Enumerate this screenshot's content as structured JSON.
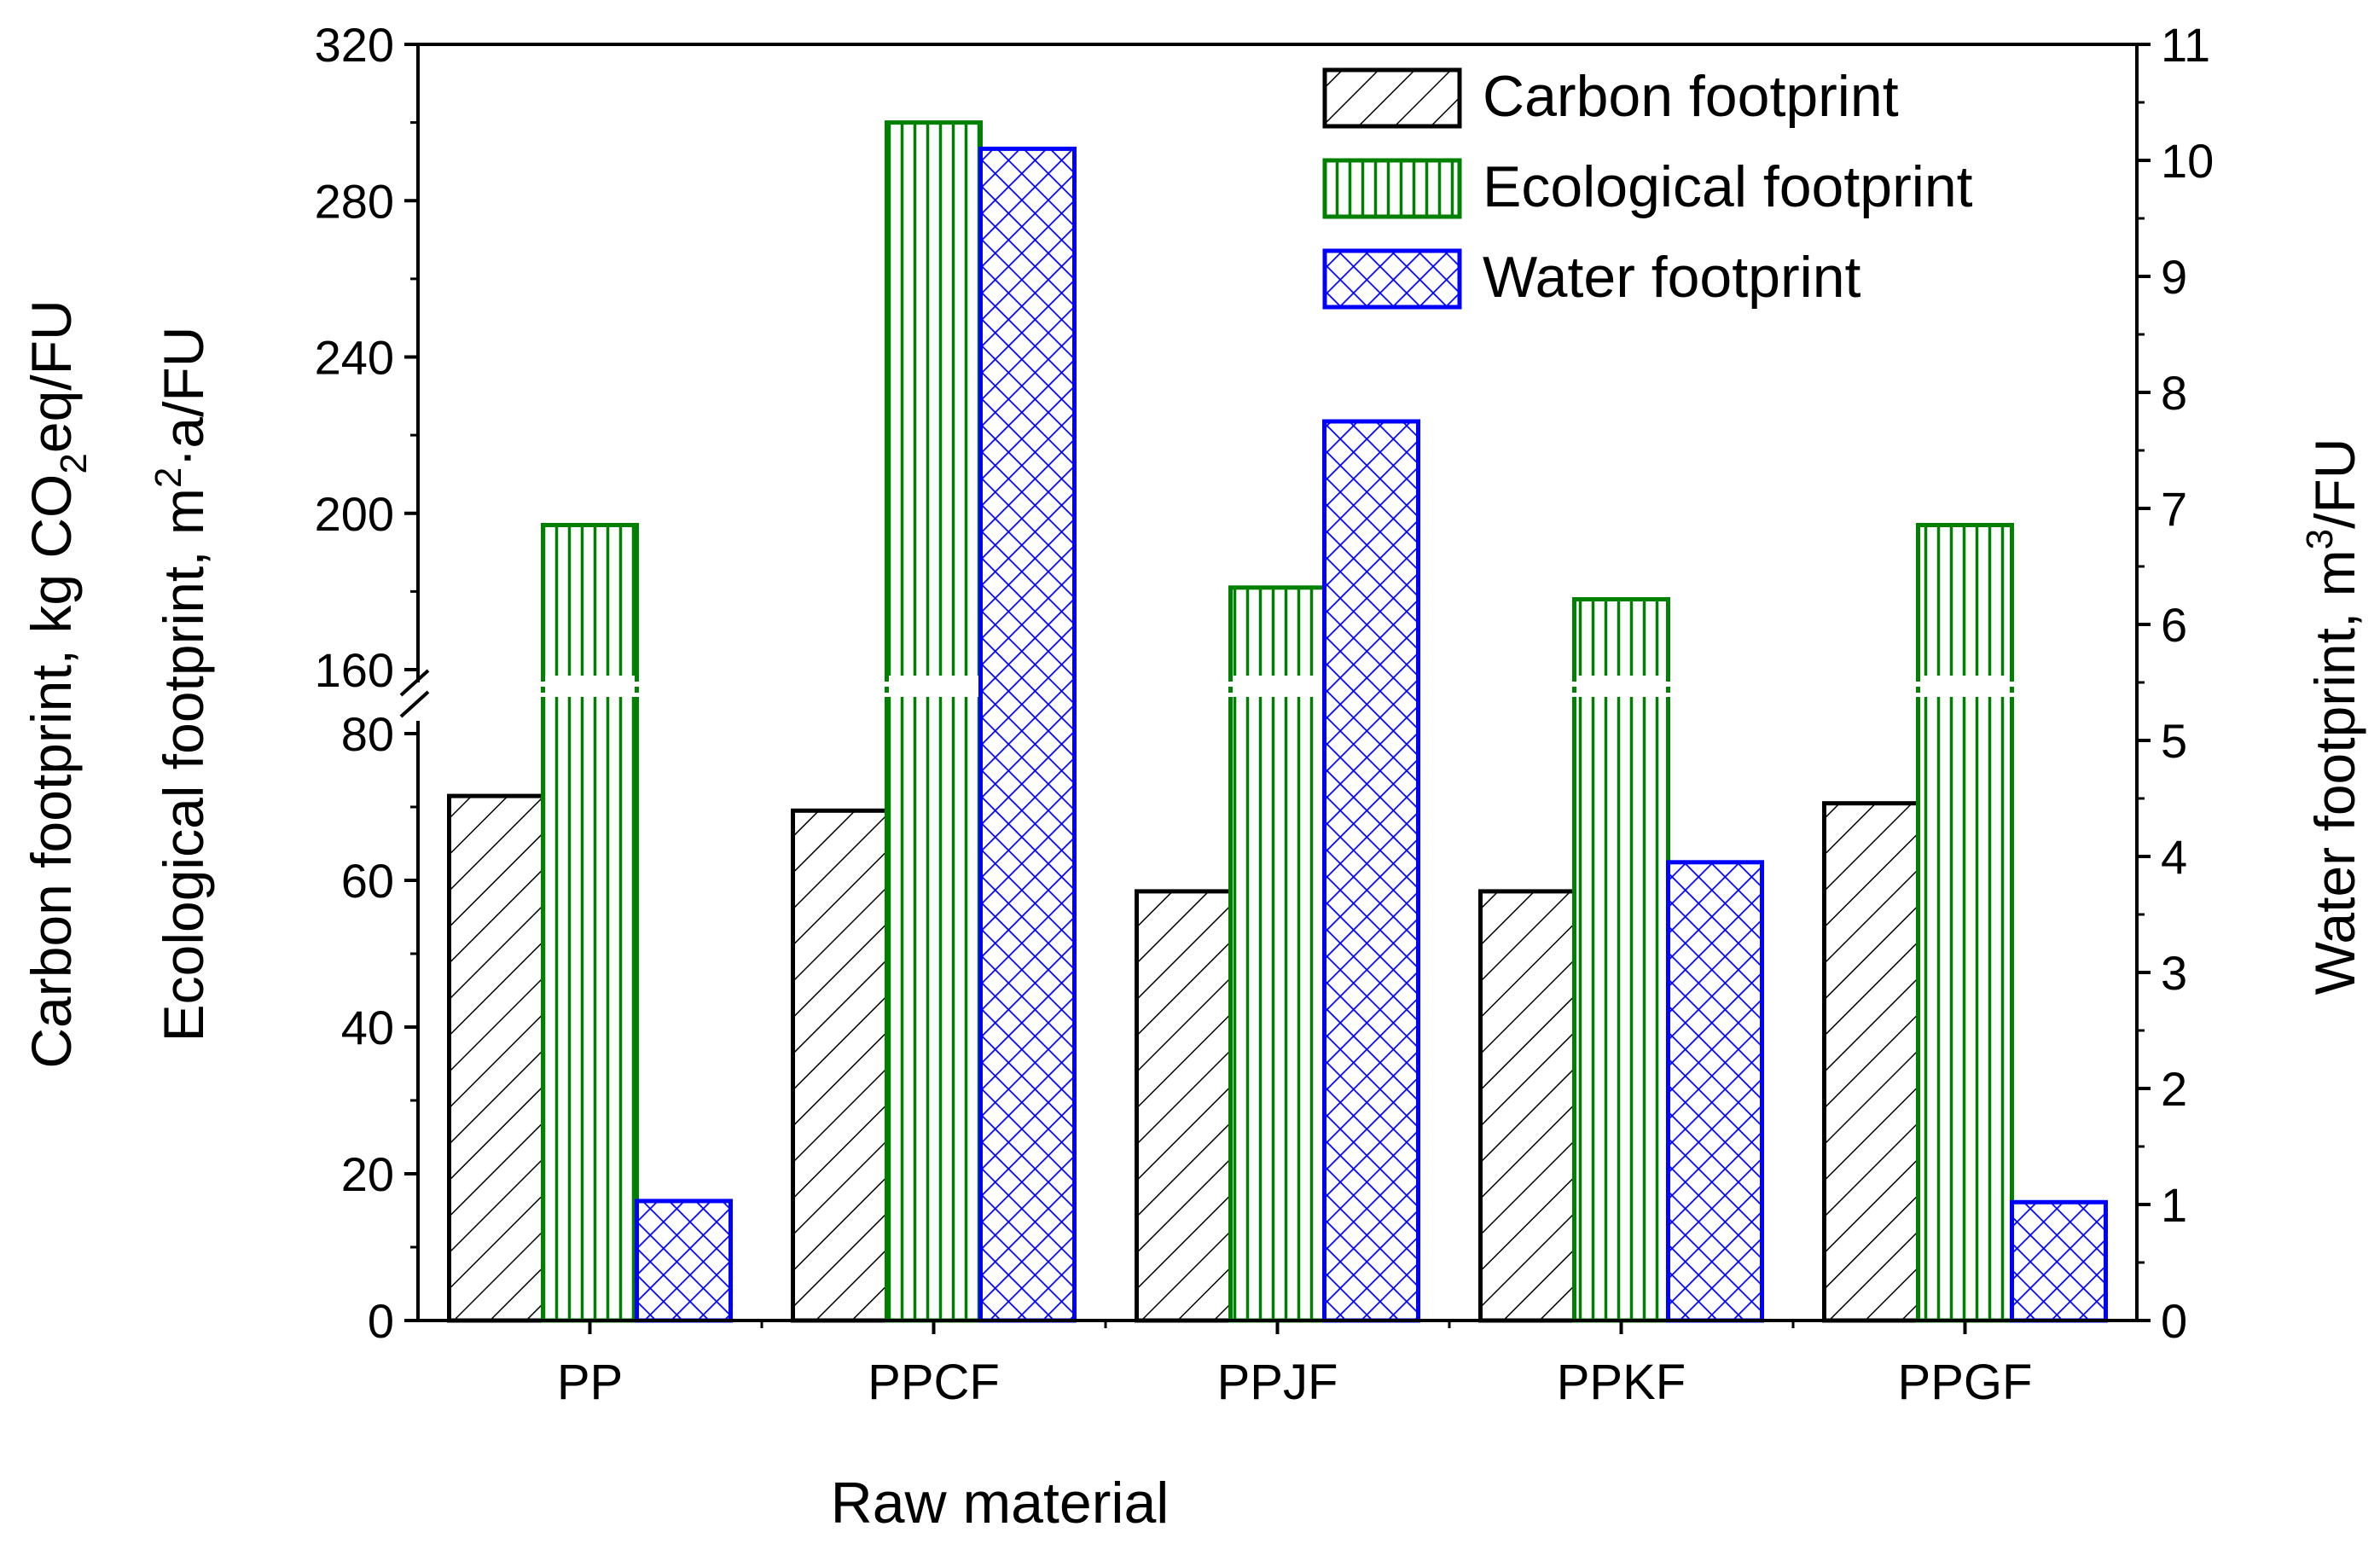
{
  "chart_data": {
    "type": "bar",
    "title": "",
    "xlabel": "Raw material",
    "categories": [
      "PP",
      "PPCF",
      "PPJF",
      "PPKF",
      "PPGF"
    ],
    "ylabel_left": {
      "line1": {
        "pre": "Carbon footprint, kg CO",
        "sub": "2",
        "post": "eq/FU"
      },
      "line2": {
        "pre": "Ecological footprint, m",
        "sup": "2",
        "post": "·a/FU"
      }
    },
    "ylabel_right": {
      "pre": "Water footprint, m",
      "sup": "3",
      "post": "/FU"
    },
    "left_axis": {
      "lower_segment": {
        "range": [
          0,
          80
        ],
        "ticks": [
          "0",
          "20",
          "40",
          "60",
          "80"
        ]
      },
      "upper_segment": {
        "range": [
          160,
          320
        ],
        "ticks": [
          "160",
          "200",
          "240",
          "280",
          "320"
        ]
      },
      "axis_break": true
    },
    "right_axis": {
      "range": [
        0,
        11
      ],
      "ticks": [
        "0",
        "1",
        "2",
        "3",
        "4",
        "5",
        "6",
        "7",
        "8",
        "9",
        "10",
        "11"
      ]
    },
    "series": [
      {
        "name": "Carbon footprint",
        "axis": "left",
        "pattern": "diagonal",
        "color": "#000000",
        "values": [
          71.5,
          69.5,
          58.5,
          58.5,
          70.5
        ]
      },
      {
        "name": "Ecological footprint",
        "axis": "left",
        "pattern": "vertical",
        "color": "#008000",
        "values": [
          197,
          300,
          181,
          178,
          197
        ]
      },
      {
        "name": "Water footprint",
        "axis": "right",
        "pattern": "crosshatch",
        "color": "#0000ff",
        "values": [
          1.03,
          10.1,
          7.75,
          3.95,
          1.02
        ]
      }
    ],
    "legend": {
      "position": "top-right",
      "entries": [
        "Carbon footprint",
        "Ecological footprint",
        "Water footprint"
      ]
    },
    "grid": false
  }
}
